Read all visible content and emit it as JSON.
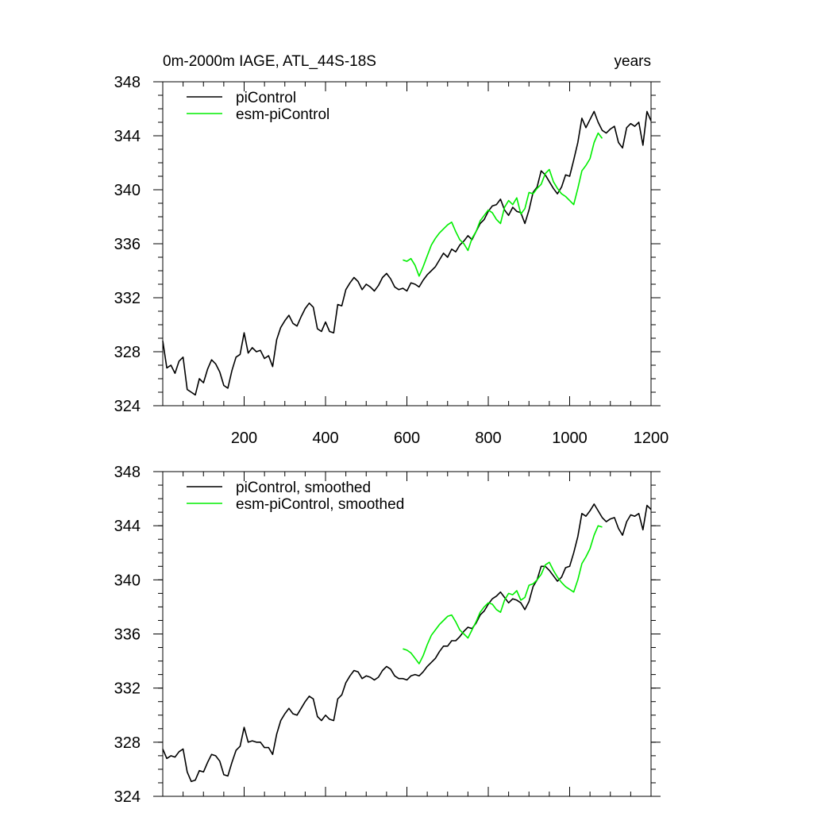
{
  "figure": {
    "title_left": "0m-2000m IAGE, ATL_44S-18S",
    "title_right": "years"
  },
  "chart_data": [
    {
      "type": "line",
      "title": "0m-2000m IAGE, ATL_44S-18S",
      "title_right": "years",
      "xlabel": "",
      "ylabel": "",
      "xlim": [
        0,
        1200
      ],
      "ylim": [
        324,
        348
      ],
      "xticks": [
        200,
        400,
        600,
        800,
        1000,
        1200
      ],
      "xtick_labels": [
        "200",
        "400",
        "600",
        "800",
        "1000",
        "1200"
      ],
      "yticks": [
        324,
        328,
        332,
        336,
        340,
        344,
        348
      ],
      "ytick_labels": [
        "324",
        "328",
        "332",
        "336",
        "340",
        "344",
        "348"
      ],
      "grid": false,
      "legend": "top-left",
      "series": [
        {
          "name": "piControl",
          "color": "#000000",
          "x": [
            0,
            10,
            20,
            30,
            40,
            50,
            60,
            70,
            80,
            90,
            100,
            110,
            120,
            130,
            140,
            150,
            160,
            170,
            180,
            190,
            200,
            210,
            220,
            230,
            240,
            250,
            260,
            270,
            280,
            290,
            300,
            310,
            320,
            330,
            340,
            350,
            360,
            370,
            380,
            390,
            400,
            410,
            420,
            430,
            440,
            450,
            460,
            470,
            480,
            490,
            500,
            510,
            520,
            530,
            540,
            550,
            560,
            570,
            580,
            590,
            600,
            610,
            620,
            630,
            640,
            650,
            660,
            670,
            680,
            690,
            700,
            710,
            720,
            730,
            740,
            750,
            760,
            770,
            780,
            790,
            800,
            810,
            820,
            830,
            840,
            850,
            860,
            870,
            880,
            890,
            900,
            910,
            920,
            930,
            940,
            950,
            960,
            970,
            980,
            990,
            1000,
            1010,
            1020,
            1030,
            1040,
            1050,
            1060,
            1070,
            1080,
            1090,
            1100,
            1110,
            1120,
            1130,
            1140,
            1150,
            1160,
            1170,
            1180,
            1190,
            1200
          ],
          "values": [
            328.8,
            326.8,
            327.0,
            326.4,
            327.3,
            327.6,
            325.2,
            325.0,
            324.8,
            326.0,
            325.7,
            326.7,
            327.4,
            327.1,
            326.5,
            325.5,
            325.3,
            326.6,
            327.6,
            327.8,
            329.4,
            327.9,
            328.3,
            328.0,
            328.1,
            327.5,
            327.7,
            326.9,
            328.9,
            329.8,
            330.3,
            330.7,
            330.1,
            329.9,
            330.6,
            331.2,
            331.6,
            331.3,
            329.7,
            329.5,
            330.2,
            329.5,
            329.4,
            331.5,
            331.4,
            332.6,
            333.1,
            333.5,
            333.2,
            332.6,
            333.0,
            332.8,
            332.5,
            332.9,
            333.5,
            333.8,
            333.4,
            332.8,
            332.6,
            332.7,
            332.5,
            333.1,
            333.0,
            332.8,
            333.3,
            333.7,
            334.0,
            334.3,
            334.8,
            335.3,
            335.0,
            335.6,
            335.4,
            335.9,
            336.2,
            336.6,
            336.3,
            336.9,
            337.5,
            337.8,
            338.4,
            338.8,
            338.9,
            339.3,
            338.5,
            338.1,
            338.7,
            338.4,
            338.3,
            337.5,
            338.5,
            339.8,
            340.2,
            341.4,
            341.1,
            340.6,
            340.1,
            339.7,
            340.2,
            341.1,
            341.0,
            342.2,
            343.5,
            345.3,
            344.6,
            345.2,
            345.8,
            345.0,
            344.4,
            344.2,
            344.5,
            344.7,
            343.5,
            343.1,
            344.6,
            344.9,
            344.7,
            345.0,
            343.3,
            345.8,
            345.1
          ]
        },
        {
          "name": "esm-piControl",
          "color": "#00ee00",
          "x": [
            590,
            600,
            610,
            620,
            630,
            640,
            650,
            660,
            670,
            680,
            690,
            700,
            710,
            720,
            730,
            740,
            750,
            760,
            770,
            780,
            790,
            800,
            810,
            820,
            830,
            840,
            850,
            860,
            870,
            880,
            890,
            900,
            910,
            920,
            930,
            940,
            950,
            960,
            970,
            980,
            990,
            1000,
            1010,
            1020,
            1030,
            1040,
            1050,
            1060,
            1070,
            1080
          ],
          "values": [
            334.8,
            334.7,
            334.9,
            334.4,
            333.6,
            334.3,
            335.1,
            335.9,
            336.4,
            336.8,
            337.1,
            337.4,
            337.6,
            336.9,
            336.3,
            336.0,
            335.5,
            336.4,
            336.9,
            337.7,
            338.1,
            338.5,
            338.3,
            337.8,
            337.5,
            338.7,
            339.2,
            338.9,
            339.4,
            338.2,
            338.6,
            339.8,
            339.7,
            340.1,
            340.4,
            341.2,
            341.5,
            340.6,
            340.1,
            339.7,
            339.5,
            339.2,
            338.9,
            340.1,
            341.4,
            341.8,
            342.3,
            343.5,
            344.2,
            343.8
          ]
        }
      ]
    },
    {
      "type": "line",
      "title": "",
      "xlabel": "",
      "ylabel": "",
      "xlim": [
        0,
        1200
      ],
      "ylim": [
        324,
        348
      ],
      "xticks": [
        200,
        400,
        600,
        800,
        1000,
        1200
      ],
      "xtick_labels": [],
      "yticks": [
        324,
        328,
        332,
        336,
        340,
        344,
        348
      ],
      "ytick_labels": [
        "324",
        "328",
        "332",
        "336",
        "340",
        "344",
        "348"
      ],
      "grid": false,
      "legend": "top-left",
      "series": [
        {
          "name": "piControl, smoothed",
          "color": "#000000",
          "x": [
            0,
            10,
            20,
            30,
            40,
            50,
            60,
            70,
            80,
            90,
            100,
            110,
            120,
            130,
            140,
            150,
            160,
            170,
            180,
            190,
            200,
            210,
            220,
            230,
            240,
            250,
            260,
            270,
            280,
            290,
            300,
            310,
            320,
            330,
            340,
            350,
            360,
            370,
            380,
            390,
            400,
            410,
            420,
            430,
            440,
            450,
            460,
            470,
            480,
            490,
            500,
            510,
            520,
            530,
            540,
            550,
            560,
            570,
            580,
            590,
            600,
            610,
            620,
            630,
            640,
            650,
            660,
            670,
            680,
            690,
            700,
            710,
            720,
            730,
            740,
            750,
            760,
            770,
            780,
            790,
            800,
            810,
            820,
            830,
            840,
            850,
            860,
            870,
            880,
            890,
            900,
            910,
            920,
            930,
            940,
            950,
            960,
            970,
            980,
            990,
            1000,
            1010,
            1020,
            1030,
            1040,
            1050,
            1060,
            1070,
            1080,
            1090,
            1100,
            1110,
            1120,
            1130,
            1140,
            1150,
            1160,
            1170,
            1180,
            1190,
            1200
          ],
          "values": [
            327.5,
            326.8,
            327.0,
            326.9,
            327.3,
            327.5,
            325.8,
            325.1,
            325.2,
            325.9,
            325.8,
            326.5,
            327.1,
            327.0,
            326.6,
            325.6,
            325.5,
            326.5,
            327.4,
            327.7,
            329.1,
            328.0,
            328.1,
            328.0,
            328.0,
            327.6,
            327.6,
            327.1,
            328.6,
            329.6,
            330.1,
            330.5,
            330.1,
            330.0,
            330.5,
            331.0,
            331.4,
            331.2,
            329.9,
            329.6,
            330.0,
            329.7,
            329.6,
            331.2,
            331.5,
            332.4,
            332.9,
            333.3,
            333.2,
            332.7,
            332.9,
            332.8,
            332.6,
            332.8,
            333.3,
            333.6,
            333.4,
            332.9,
            332.7,
            332.7,
            332.6,
            332.9,
            333.0,
            332.9,
            333.2,
            333.6,
            333.9,
            334.2,
            334.7,
            335.1,
            335.1,
            335.5,
            335.5,
            335.8,
            336.2,
            336.5,
            336.4,
            336.8,
            337.4,
            337.7,
            338.2,
            338.6,
            338.8,
            339.1,
            338.7,
            338.3,
            338.6,
            338.5,
            338.3,
            337.8,
            338.4,
            339.5,
            340.0,
            341.0,
            341.0,
            340.7,
            340.3,
            339.9,
            340.2,
            340.9,
            341.0,
            342.0,
            343.2,
            344.9,
            344.7,
            345.1,
            345.6,
            345.1,
            344.6,
            344.3,
            344.5,
            344.6,
            343.8,
            343.3,
            344.3,
            344.8,
            344.7,
            344.9,
            343.7,
            345.5,
            345.2
          ]
        },
        {
          "name": "esm-piControl, smoothed",
          "color": "#00ee00",
          "x": [
            590,
            600,
            610,
            620,
            630,
            640,
            650,
            660,
            670,
            680,
            690,
            700,
            710,
            720,
            730,
            740,
            750,
            760,
            770,
            780,
            790,
            800,
            810,
            820,
            830,
            840,
            850,
            860,
            870,
            880,
            890,
            900,
            910,
            920,
            930,
            940,
            950,
            960,
            970,
            980,
            990,
            1000,
            1010,
            1020,
            1030,
            1040,
            1050,
            1060,
            1070,
            1080
          ],
          "values": [
            334.9,
            334.8,
            334.6,
            334.2,
            333.8,
            334.4,
            335.2,
            335.9,
            336.3,
            336.7,
            337.0,
            337.3,
            337.4,
            336.9,
            336.3,
            336.0,
            335.7,
            336.3,
            336.9,
            337.6,
            338.0,
            338.3,
            338.2,
            337.8,
            337.6,
            338.5,
            339.0,
            338.9,
            339.2,
            338.5,
            338.7,
            339.6,
            339.7,
            340.0,
            340.4,
            341.1,
            341.3,
            340.7,
            340.2,
            339.8,
            339.5,
            339.3,
            339.1,
            340.0,
            341.2,
            341.7,
            342.3,
            343.3,
            344.0,
            343.9
          ]
        }
      ]
    }
  ]
}
